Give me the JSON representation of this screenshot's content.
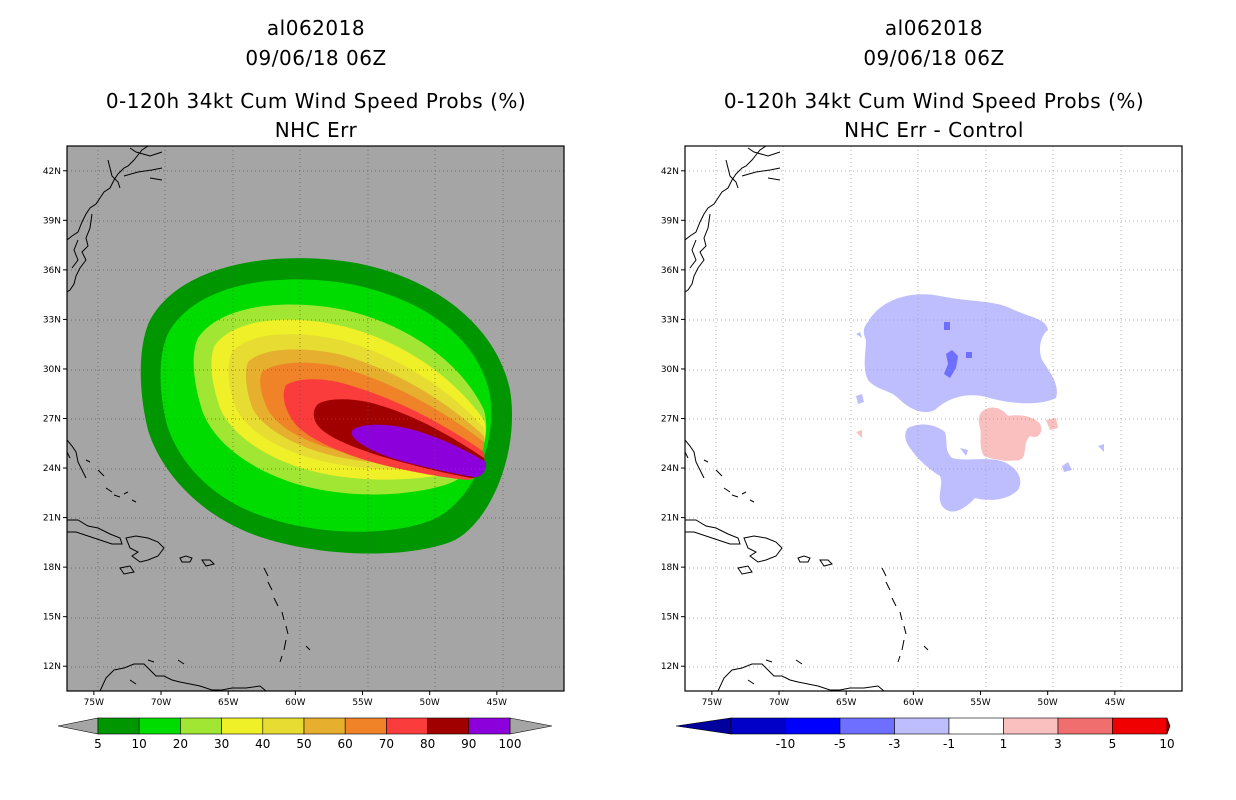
{
  "chart_data": [
    {
      "type": "heatmap",
      "storm_id": "al062018",
      "date": "09/06/18 06Z",
      "title": "0-120h 34kt Cum Wind Speed Probs (%)",
      "subtitle": "NHC Err",
      "x_ticks": [
        "75W",
        "70W",
        "65W",
        "60W",
        "55W",
        "50W",
        "45W"
      ],
      "y_ticks": [
        "42N",
        "39N",
        "36N",
        "33N",
        "30N",
        "27N",
        "24N",
        "21N",
        "18N",
        "15N",
        "12N"
      ],
      "xlim": [
        -77,
        -40
      ],
      "ylim": [
        10.5,
        43.5
      ],
      "contour_levels": [
        "5",
        "10",
        "20",
        "30",
        "40",
        "50",
        "60",
        "70",
        "80",
        "90",
        "100"
      ],
      "colors": [
        "#009600",
        "#00dc00",
        "#a0e632",
        "#f0f028",
        "#e6dc32",
        "#e6af2d",
        "#f08228",
        "#fa3c3c",
        "#a00000",
        "#8c00dc"
      ]
    },
    {
      "type": "heatmap",
      "storm_id": "al062018",
      "date": "09/06/18 06Z",
      "title": "0-120h 34kt Cum Wind Speed Probs (%)",
      "subtitle": "NHC Err - Control",
      "x_ticks": [
        "75W",
        "70W",
        "65W",
        "60W",
        "55W",
        "50W",
        "45W"
      ],
      "y_ticks": [
        "42N",
        "39N",
        "36N",
        "33N",
        "30N",
        "27N",
        "24N",
        "21N",
        "18N",
        "15N",
        "12N"
      ],
      "xlim": [
        -77,
        -40
      ],
      "ylim": [
        10.5,
        43.5
      ],
      "contour_levels": [
        "-10",
        "-5",
        "-3",
        "-1",
        "1",
        "3",
        "5",
        "10"
      ],
      "colors": [
        "#0000c8",
        "#0000ff",
        "#6e6eff",
        "#bebeff",
        "#ffffff",
        "#fac0c0",
        "#f06e6e",
        "#f00000"
      ],
      "end_colors": [
        "#00009c",
        "#8a0000"
      ]
    }
  ]
}
